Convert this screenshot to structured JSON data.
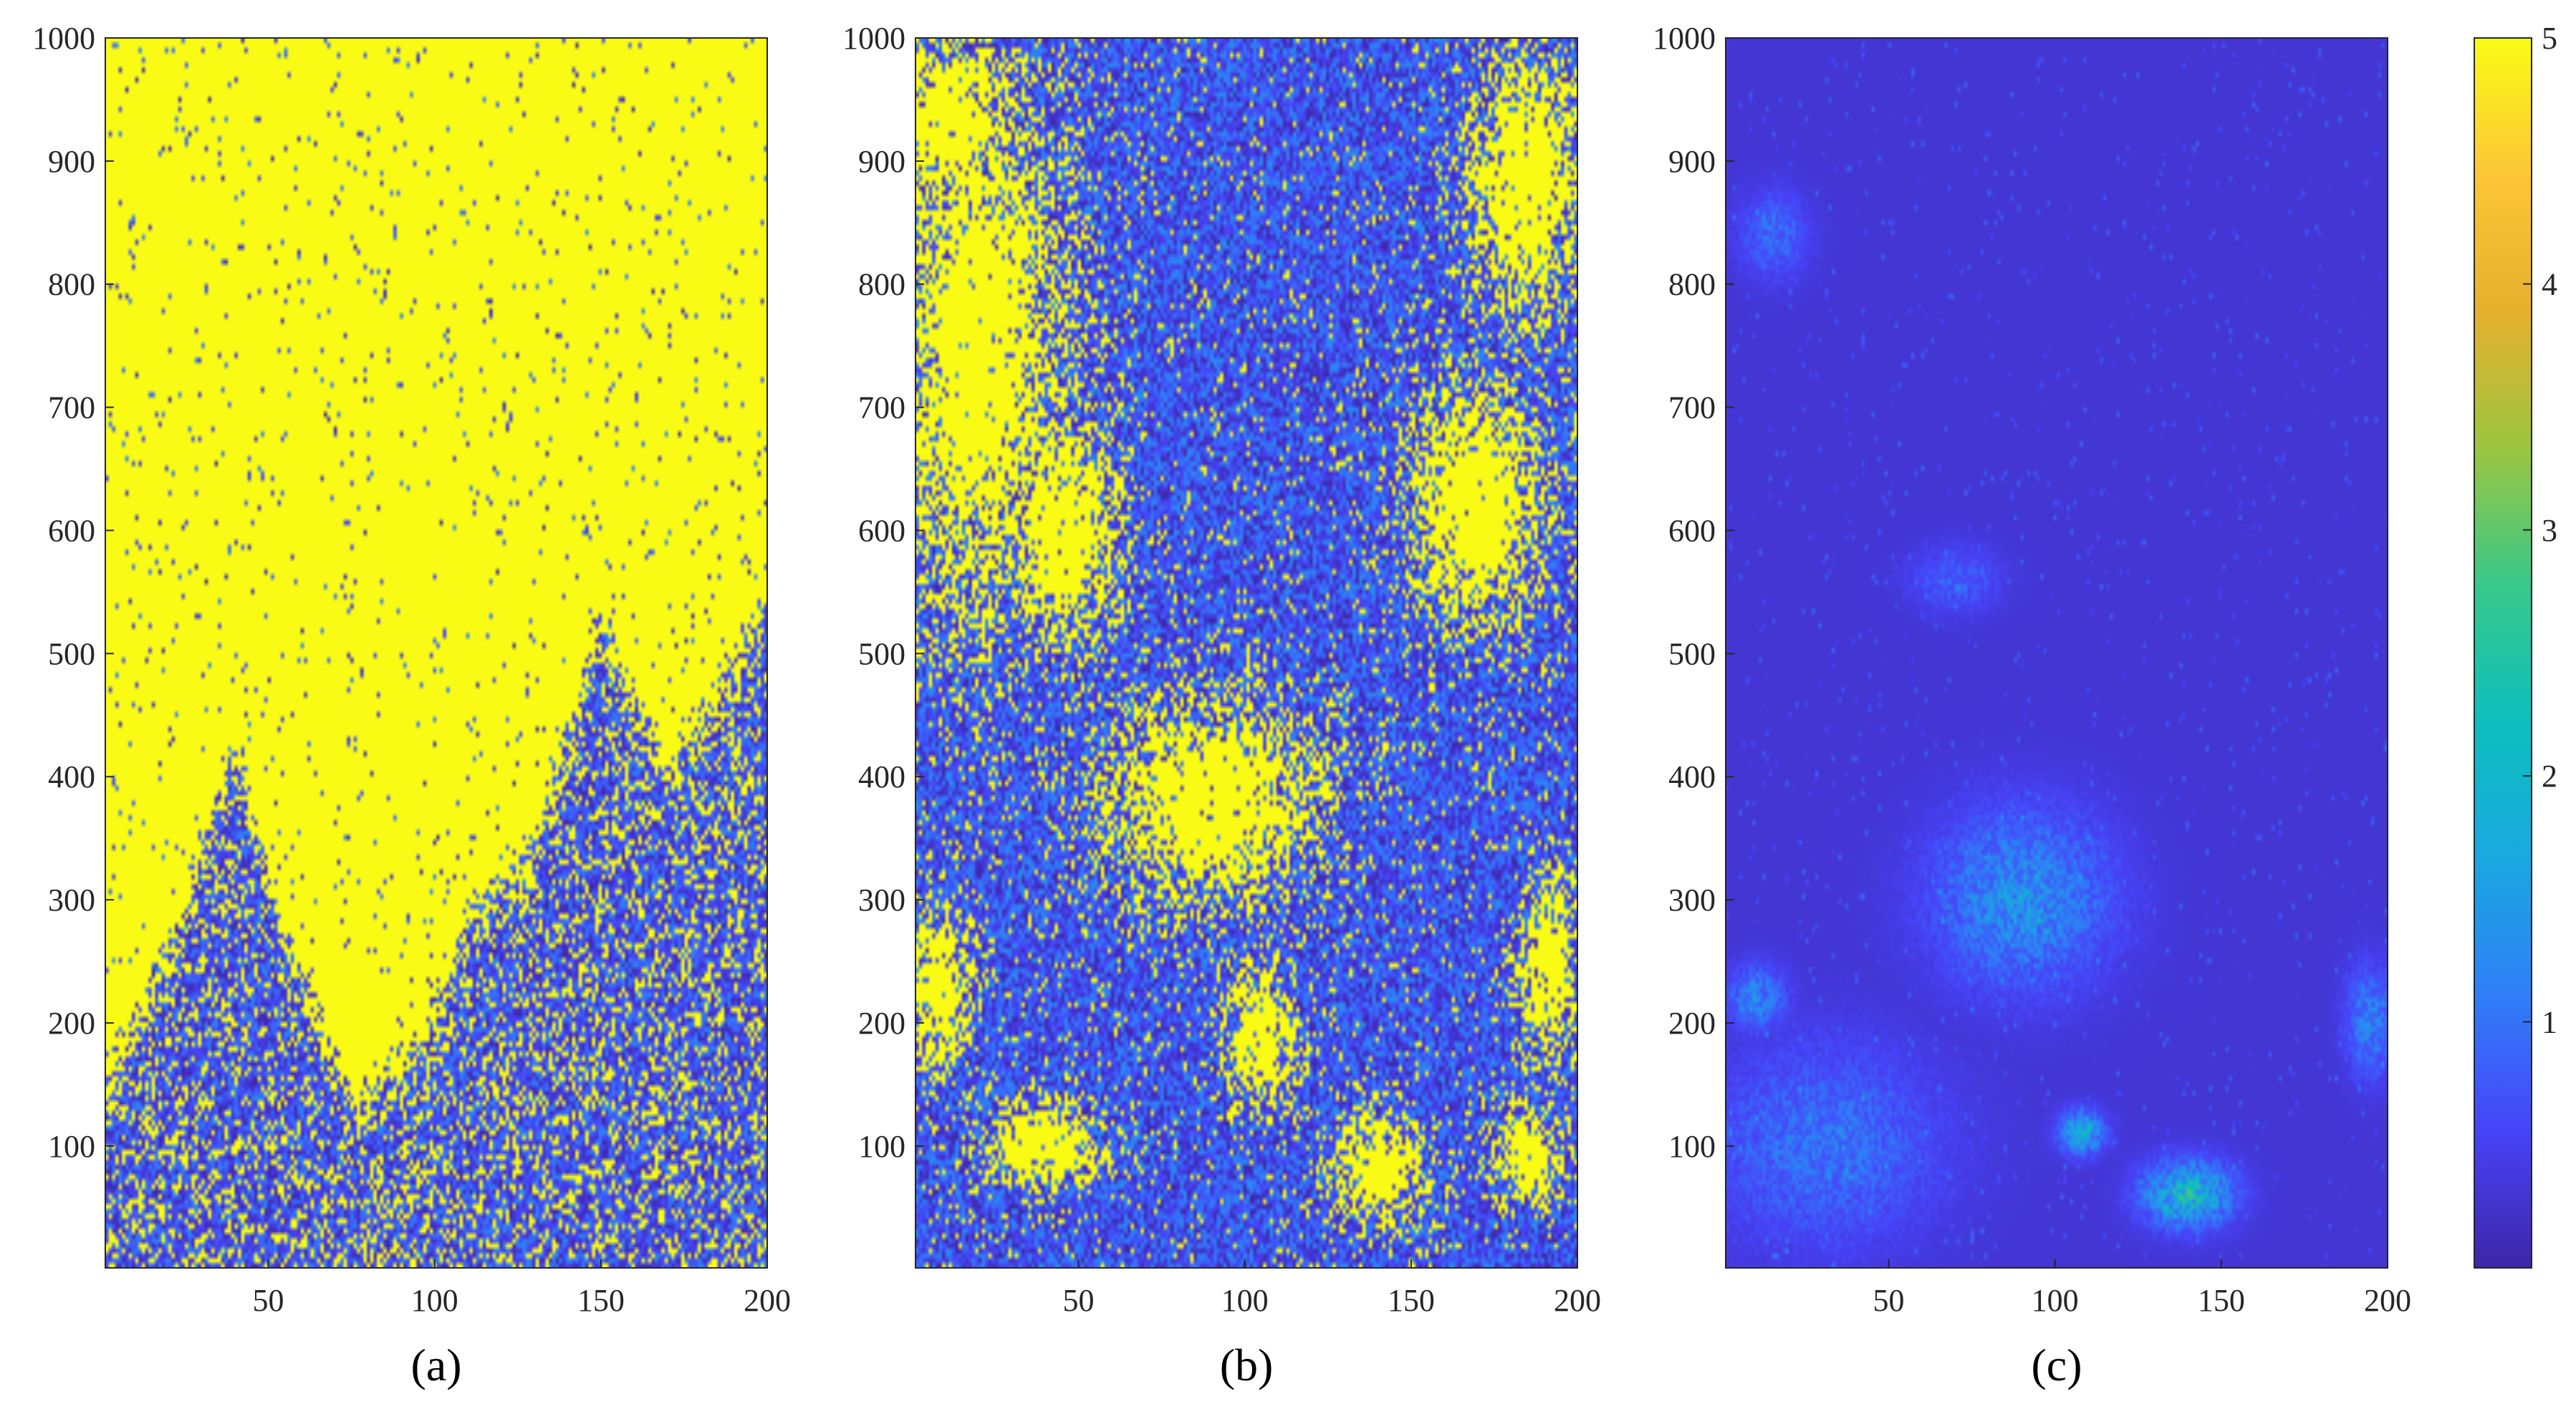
{
  "chart_data": [
    {
      "type": "heatmap",
      "panel_label": "(a)",
      "xlim": [
        1,
        200
      ],
      "ylim": [
        1,
        1000
      ],
      "x_ticks": [
        "50",
        "100",
        "150",
        "200"
      ],
      "y_ticks": [
        "100",
        "200",
        "300",
        "400",
        "500",
        "600",
        "700",
        "800",
        "900",
        "1000"
      ],
      "clim": [
        0,
        5
      ],
      "pattern": {
        "description_values": "grid of values 0-5; mostly saturated at 5 in upper region, mixed low values near bottom rows (1-300) forming mountain-like shapes",
        "front_x": [
          1,
          20,
          40,
          55,
          75,
          95,
          110,
          130,
          150,
          170,
          190,
          200
        ],
        "front_y": [
          150,
          250,
          420,
          260,
          130,
          170,
          280,
          330,
          520,
          400,
          480,
          540
        ],
        "high_fraction_above_front": 0.97,
        "high_fraction_below_front": 0.25
      }
    },
    {
      "type": "heatmap",
      "panel_label": "(b)",
      "xlim": [
        1,
        200
      ],
      "ylim": [
        1,
        1000
      ],
      "x_ticks": [
        "50",
        "100",
        "150",
        "200"
      ],
      "y_ticks": [
        "100",
        "200",
        "300",
        "400",
        "500",
        "600",
        "700",
        "800",
        "900",
        "1000"
      ],
      "clim": [
        0,
        5
      ],
      "pattern": {
        "blobs": [
          {
            "cx": 20,
            "cy": 750,
            "rx": 28,
            "ry": 240,
            "v": 5
          },
          {
            "cx": 45,
            "cy": 600,
            "rx": 18,
            "ry": 100,
            "v": 5
          },
          {
            "cx": 10,
            "cy": 930,
            "rx": 25,
            "ry": 80,
            "v": 5
          },
          {
            "cx": 185,
            "cy": 880,
            "rx": 18,
            "ry": 120,
            "v": 5
          },
          {
            "cx": 170,
            "cy": 620,
            "rx": 22,
            "ry": 110,
            "v": 5
          },
          {
            "cx": 90,
            "cy": 380,
            "rx": 35,
            "ry": 90,
            "v": 5
          },
          {
            "cx": 105,
            "cy": 190,
            "rx": 12,
            "ry": 60,
            "v": 5
          },
          {
            "cx": 40,
            "cy": 100,
            "rx": 20,
            "ry": 40,
            "v": 5
          },
          {
            "cx": 140,
            "cy": 80,
            "rx": 15,
            "ry": 50,
            "v": 5
          },
          {
            "cx": 192,
            "cy": 240,
            "rx": 10,
            "ry": 80,
            "v": 5
          },
          {
            "cx": 8,
            "cy": 230,
            "rx": 10,
            "ry": 70,
            "v": 5
          },
          {
            "cx": 185,
            "cy": 90,
            "rx": 12,
            "ry": 40,
            "v": 5
          }
        ],
        "noise_high_fraction": 0.06
      }
    },
    {
      "type": "heatmap",
      "panel_label": "(c)",
      "xlim": [
        1,
        200
      ],
      "ylim": [
        1,
        1000
      ],
      "x_ticks": [
        "50",
        "100",
        "150",
        "200"
      ],
      "y_ticks": [
        "100",
        "200",
        "300",
        "400",
        "500",
        "600",
        "700",
        "800",
        "900",
        "1000"
      ],
      "clim": [
        0,
        5
      ],
      "pattern": {
        "blobs": [
          {
            "cx": 90,
            "cy": 300,
            "rx": 30,
            "ry": 80,
            "v": 1.2
          },
          {
            "cx": 140,
            "cy": 60,
            "rx": 15,
            "ry": 30,
            "v": 2.0
          },
          {
            "cx": 108,
            "cy": 110,
            "rx": 8,
            "ry": 20,
            "v": 1.6
          },
          {
            "cx": 30,
            "cy": 100,
            "rx": 40,
            "ry": 90,
            "v": 0.8
          },
          {
            "cx": 10,
            "cy": 220,
            "rx": 10,
            "ry": 30,
            "v": 1.0
          },
          {
            "cx": 195,
            "cy": 200,
            "rx": 8,
            "ry": 50,
            "v": 1.0
          },
          {
            "cx": 15,
            "cy": 840,
            "rx": 12,
            "ry": 40,
            "v": 0.7
          },
          {
            "cx": 70,
            "cy": 560,
            "rx": 15,
            "ry": 30,
            "v": 0.6
          }
        ],
        "base_value": 0.3
      }
    }
  ],
  "colorbar": {
    "clim": [
      0,
      5
    ],
    "ticks": [
      "1",
      "2",
      "3",
      "4",
      "5"
    ],
    "colors": [
      "#3e26a8",
      "#4743f8",
      "#2f7ff7",
      "#1aa8e0",
      "#0dbfbd",
      "#38c88a",
      "#9cc541",
      "#e6b02e",
      "#fcc636",
      "#f9fb15"
    ]
  }
}
